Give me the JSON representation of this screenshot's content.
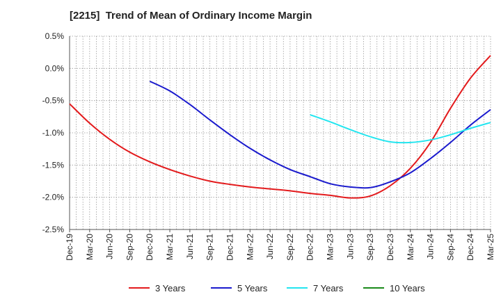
{
  "chart_data": {
    "type": "line",
    "title": "[2215]  Trend of Mean of Ordinary Income Margin",
    "xlabel": "",
    "ylabel": "",
    "y_unit": "%",
    "ylim": [
      -2.5,
      0.5
    ],
    "y_ticks": [
      "0.5%",
      "0.0%",
      "-0.5%",
      "-1.0%",
      "-1.5%",
      "-2.0%",
      "-2.5%"
    ],
    "x_ticks": [
      "Dec-19",
      "Mar-20",
      "Jun-20",
      "Sep-20",
      "Dec-20",
      "Mar-21",
      "Jun-21",
      "Sep-21",
      "Dec-21",
      "Mar-22",
      "Jun-22",
      "Sep-22",
      "Dec-22",
      "Mar-23",
      "Jun-23",
      "Sep-23",
      "Dec-23",
      "Mar-24",
      "Jun-24",
      "Sep-24",
      "Dec-24",
      "Mar-25"
    ],
    "grid": true,
    "legend_position": "bottom",
    "series": [
      {
        "name": "3 Years",
        "color": "#e31a1c",
        "values": [
          -0.55,
          -0.85,
          -1.1,
          -1.3,
          -1.45,
          -1.57,
          -1.67,
          -1.75,
          -1.8,
          -1.84,
          -1.87,
          -1.9,
          -1.94,
          -1.97,
          -2.01,
          -1.98,
          -1.82,
          -1.55,
          -1.15,
          -0.62,
          -0.15,
          0.2,
          null
        ]
      },
      {
        "name": "5 Years",
        "color": "#1a1acd",
        "values": [
          null,
          null,
          null,
          null,
          -0.2,
          -0.35,
          -0.56,
          -0.8,
          -1.03,
          -1.24,
          -1.42,
          -1.57,
          -1.68,
          -1.79,
          -1.84,
          -1.85,
          -1.76,
          -1.62,
          -1.4,
          -1.15,
          -0.88,
          -0.64,
          null
        ]
      },
      {
        "name": "7 Years",
        "color": "#22e5ef",
        "values": [
          null,
          null,
          null,
          null,
          null,
          null,
          null,
          null,
          null,
          null,
          null,
          null,
          -0.72,
          -0.83,
          -0.95,
          -1.06,
          -1.14,
          -1.15,
          -1.11,
          -1.03,
          -0.93,
          -0.84,
          null
        ]
      },
      {
        "name": "10 Years",
        "color": "#1a8a1a",
        "values": []
      }
    ]
  }
}
